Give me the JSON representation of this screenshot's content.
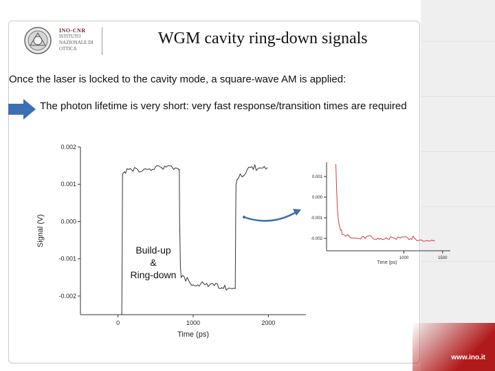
{
  "slide": {
    "title": "WGM cavity ring-down signals",
    "intro": "Once the laser is locked to the cavity mode, a square-wave AM is applied:",
    "bullet": "The photon lifetime is very short: very fast response/transition times are required",
    "annotation_lines": [
      "Build-up",
      "&",
      "Ring-down"
    ],
    "site_url": "www.ino.it"
  },
  "logo": {
    "lines": [
      "INO-CNR",
      "ISTITUTO",
      "NAZIONALE DI",
      "OTTICA"
    ]
  },
  "colors": {
    "arrow": "#3e6fb5",
    "connector": "#3f6ea8",
    "inset_trace": "#d43a3a",
    "brand_red": "#b11a1a"
  },
  "chart_data": [
    {
      "type": "line",
      "xlabel": "Time (ps)",
      "ylabel": "Signal (V)",
      "xlim": [
        -500,
        2500
      ],
      "ylim": [
        -0.0025,
        0.002
      ],
      "xticks": [
        "0",
        "1000",
        "2000"
      ],
      "yticks": [
        "0.002",
        "0.001",
        "0.000",
        "-0.001",
        "-0.002"
      ],
      "series": [
        {
          "x": [
            50,
            55,
            60,
            70,
            100,
            200,
            400,
            600,
            800,
            815,
            820,
            830,
            840,
            900,
            1000,
            1200,
            1400,
            1560,
            1565,
            1570,
            1580,
            1600,
            1650,
            1700,
            1800,
            1900,
            1990
          ],
          "y": [
            -0.0025,
            -0.001,
            0.0012,
            0.0013,
            0.0013,
            0.00135,
            0.0014,
            0.0014,
            0.00142,
            0.0014,
            0.0,
            -0.0012,
            -0.0015,
            -0.0016,
            -0.0017,
            -0.00175,
            -0.0018,
            -0.0018,
            0.0,
            0.001,
            0.0011,
            0.00115,
            0.0012,
            0.0013,
            0.0014,
            0.00143,
            0.00145
          ]
        }
      ]
    },
    {
      "type": "line",
      "xlabel": "Time (ps)",
      "ylabel": "",
      "xlim": [
        0,
        1600
      ],
      "ylim": [
        -0.0026,
        0.0017
      ],
      "xticks": [
        "1000",
        "1500"
      ],
      "yticks": [
        "0.001",
        "0.000",
        "-0.001",
        "-0.002"
      ],
      "series": [
        {
          "name": "",
          "x": [
            120,
            130,
            140,
            150,
            160,
            180,
            200,
            250,
            300,
            400,
            500,
            700,
            900,
            1100,
            1300,
            1400
          ],
          "y": [
            0.0016,
            0.0004,
            -0.0006,
            -0.001,
            -0.0013,
            -0.0016,
            -0.0018,
            -0.0019,
            -0.00195,
            -0.002,
            -0.002,
            -0.002,
            -0.00205,
            -0.00205,
            -0.0021,
            -0.0021
          ]
        }
      ]
    }
  ]
}
